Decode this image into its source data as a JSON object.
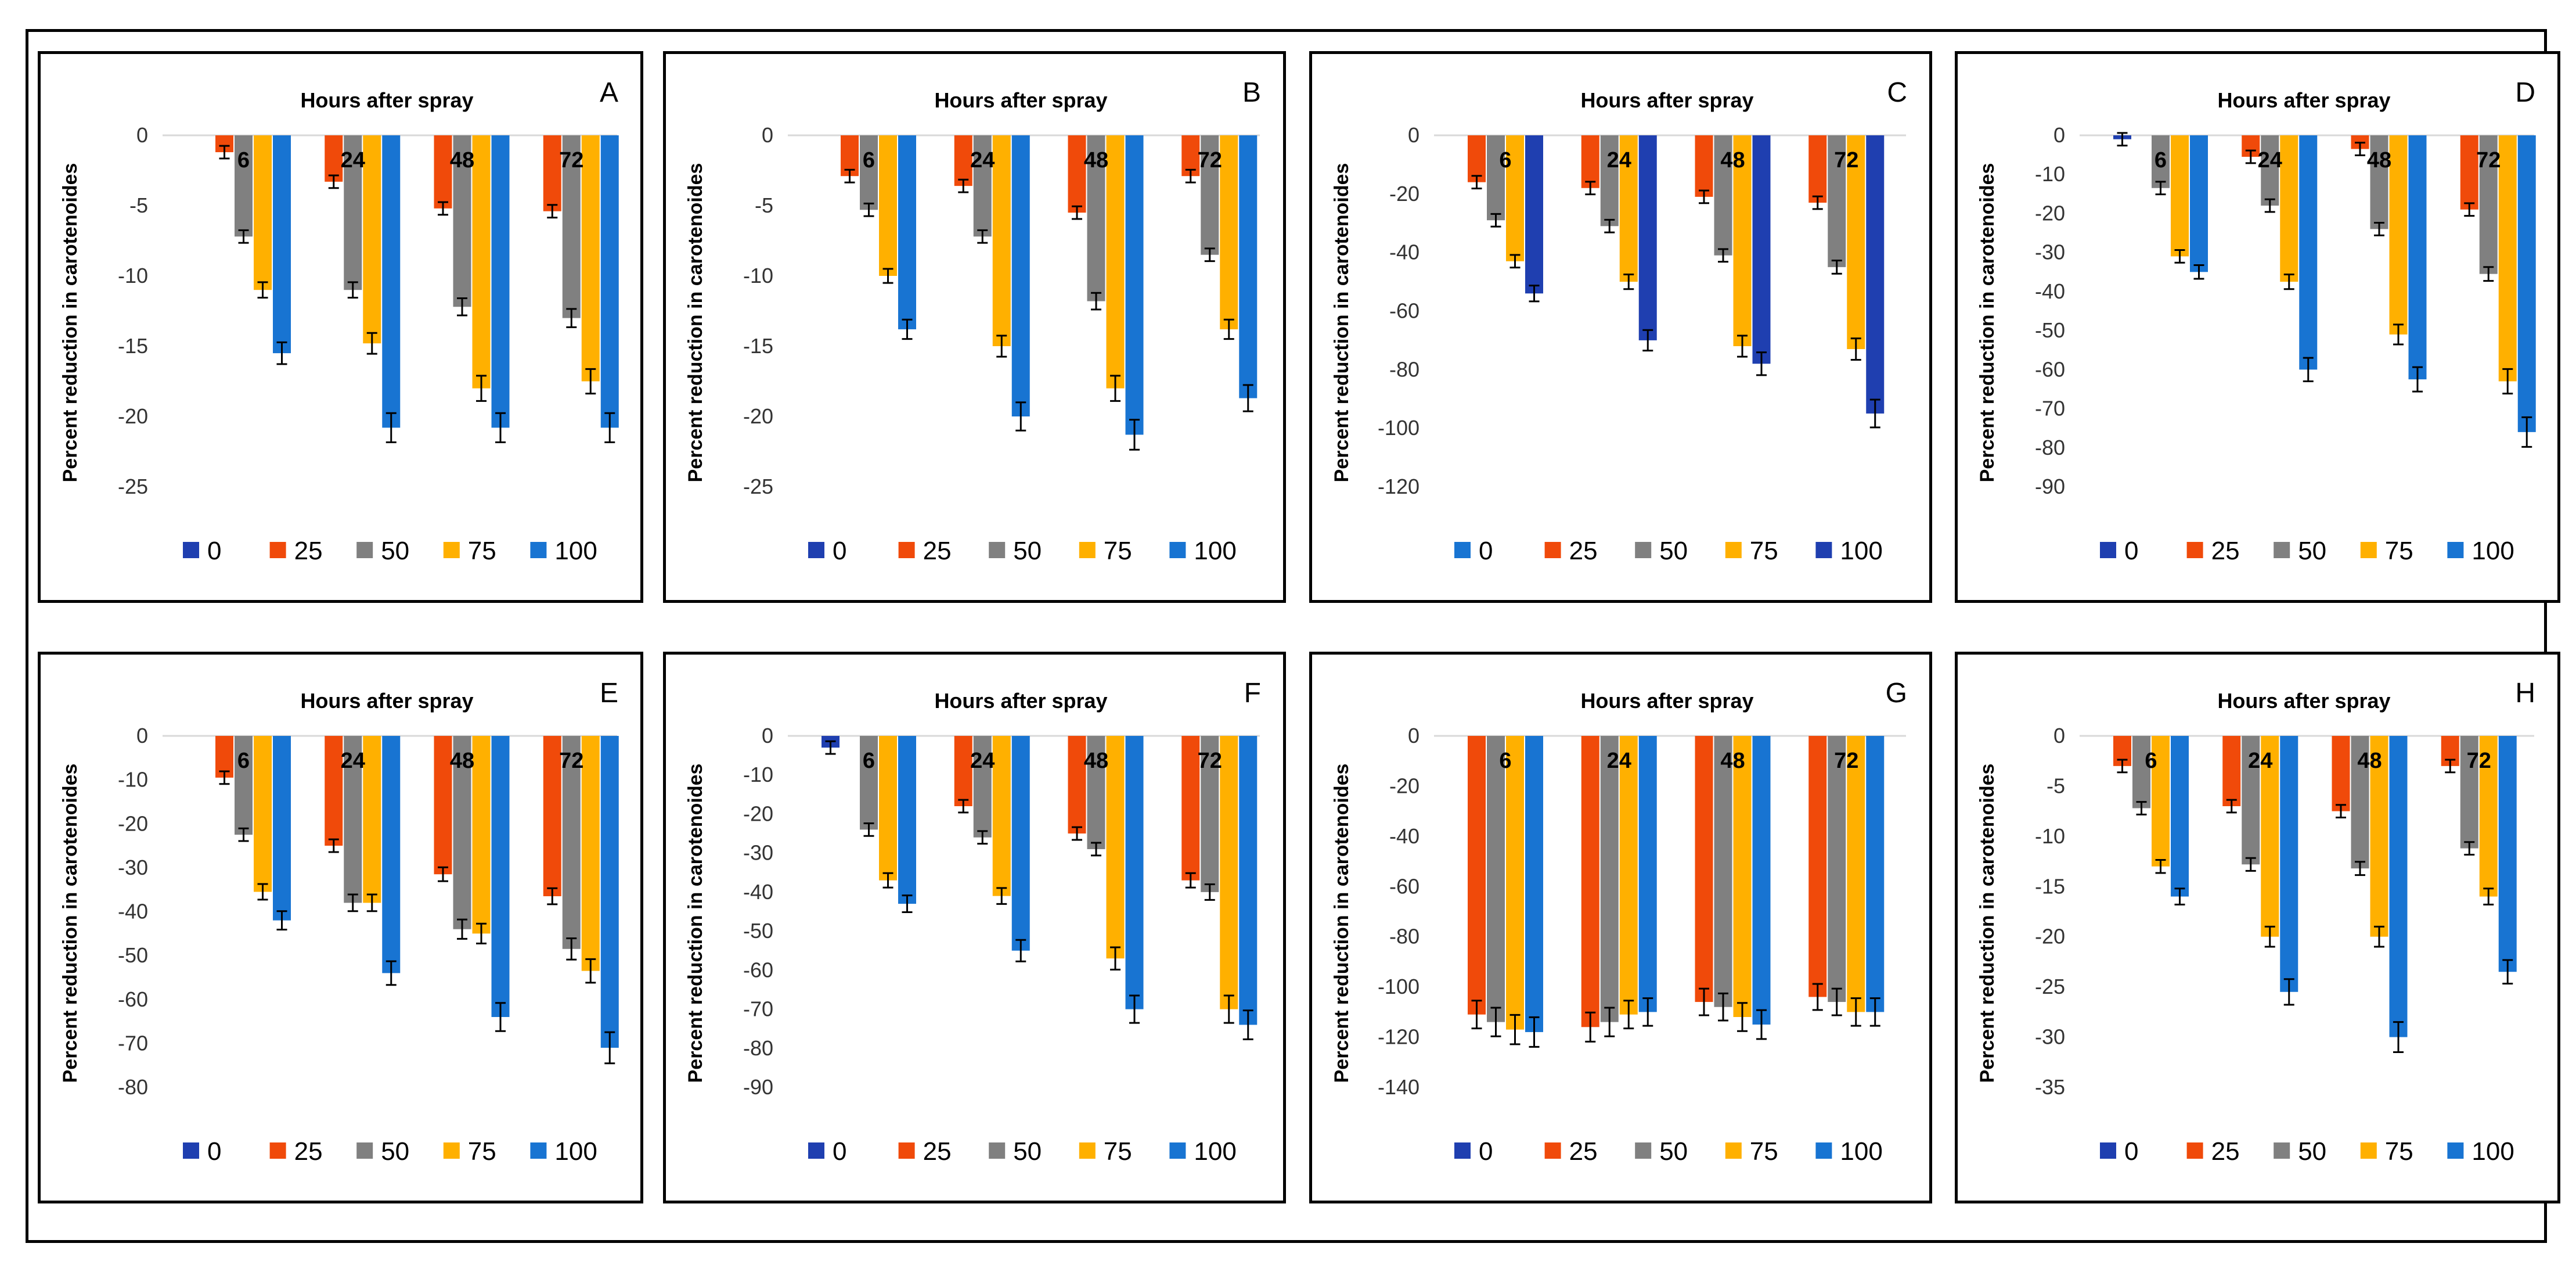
{
  "colors": {
    "c0": "#1f3fb0",
    "c25": "#f04a0a",
    "c50": "#808080",
    "c75": "#ffb000",
    "c100": "#1874d2",
    "err": "#000000"
  },
  "chart_data": [
    {
      "type": "bar",
      "letter": "A",
      "title": "Hours after spray",
      "ylabel": "Percent reduction in carotenoides",
      "ylim": [
        -25,
        0
      ],
      "yticks": [
        0,
        -5,
        -10,
        -15,
        -20,
        -25
      ],
      "categories": [
        "6",
        "24",
        "48",
        "72"
      ],
      "legend_order": [
        "0",
        "25",
        "50",
        "75",
        "100"
      ],
      "legend_colors": [
        "#1f3fb0",
        "#f04a0a",
        "#808080",
        "#ffb000",
        "#1874d2"
      ],
      "series": [
        {
          "name": "0",
          "color": "#1f3fb0",
          "values": [
            0,
            0,
            0,
            0
          ]
        },
        {
          "name": "25",
          "color": "#f04a0a",
          "values": [
            -1.2,
            -3.3,
            -5.2,
            -5.4
          ]
        },
        {
          "name": "50",
          "color": "#808080",
          "values": [
            -7.2,
            -11.0,
            -12.2,
            -13.0
          ]
        },
        {
          "name": "75",
          "color": "#ffb000",
          "values": [
            -11.0,
            -14.8,
            -18.0,
            -17.5
          ]
        },
        {
          "name": "100",
          "color": "#1874d2",
          "values": [
            -15.5,
            -20.8,
            -20.8,
            -20.8
          ]
        }
      ]
    },
    {
      "type": "bar",
      "letter": "B",
      "title": "Hours after spray",
      "ylabel": "Percent reduction in carotenoides",
      "ylim": [
        -25,
        0
      ],
      "yticks": [
        0,
        -5,
        -10,
        -15,
        -20,
        -25
      ],
      "categories": [
        "6",
        "24",
        "48",
        "72"
      ],
      "legend_order": [
        "0",
        "25",
        "50",
        "75",
        "100"
      ],
      "legend_colors": [
        "#1f3fb0",
        "#f04a0a",
        "#808080",
        "#ffb000",
        "#1874d2"
      ],
      "series": [
        {
          "name": "0",
          "color": "#1f3fb0",
          "values": [
            0,
            0,
            0,
            0
          ]
        },
        {
          "name": "25",
          "color": "#f04a0a",
          "values": [
            -2.9,
            -3.6,
            -5.5,
            -2.9
          ]
        },
        {
          "name": "50",
          "color": "#808080",
          "values": [
            -5.3,
            -7.2,
            -11.8,
            -8.5
          ]
        },
        {
          "name": "75",
          "color": "#ffb000",
          "values": [
            -10.0,
            -15.0,
            -18.0,
            -13.8
          ]
        },
        {
          "name": "100",
          "color": "#1874d2",
          "values": [
            -13.8,
            -20.0,
            -21.3,
            -18.7
          ]
        }
      ]
    },
    {
      "type": "bar",
      "letter": "C",
      "title": "Hours after spray",
      "ylabel": "Percent reduction in carotenoides",
      "ylim": [
        -120,
        0
      ],
      "yticks": [
        0,
        -20,
        -40,
        -60,
        -80,
        -100,
        -120
      ],
      "categories": [
        "6",
        "24",
        "48",
        "72"
      ],
      "legend_order": [
        "0",
        "25",
        "50",
        "75",
        "100"
      ],
      "legend_colors": [
        "#1874d2",
        "#f04a0a",
        "#808080",
        "#ffb000",
        "#1f3fb0"
      ],
      "series": [
        {
          "name": "25",
          "color": "#f04a0a",
          "values": [
            -16,
            -18,
            -21,
            -23
          ]
        },
        {
          "name": "50",
          "color": "#808080",
          "values": [
            -29,
            -31,
            -41,
            -45
          ]
        },
        {
          "name": "75",
          "color": "#ffb000",
          "values": [
            -43,
            -50,
            -72,
            -73
          ]
        },
        {
          "name": "100",
          "color": "#1f3fb0",
          "values": [
            -54,
            -70,
            -78,
            -95
          ]
        }
      ]
    },
    {
      "type": "bar",
      "letter": "D",
      "title": "Hours after spray",
      "ylabel": "Percent reduction in carotenoides",
      "ylim": [
        -90,
        0
      ],
      "yticks": [
        0,
        -10,
        -20,
        -30,
        -40,
        -50,
        -60,
        -70,
        -80,
        -90
      ],
      "categories": [
        "6",
        "24",
        "48",
        "72"
      ],
      "legend_order": [
        "0",
        "25",
        "50",
        "75",
        "100"
      ],
      "legend_colors": [
        "#1f3fb0",
        "#f04a0a",
        "#808080",
        "#ffb000",
        "#1874d2"
      ],
      "series": [
        {
          "name": "0",
          "color": "#1f3fb0",
          "values": [
            -1,
            0,
            0,
            0
          ]
        },
        {
          "name": "25",
          "color": "#f04a0a",
          "values": [
            0,
            -5.5,
            -3.5,
            -19
          ]
        },
        {
          "name": "50",
          "color": "#808080",
          "values": [
            -13.5,
            -18,
            -24,
            -35.5
          ]
        },
        {
          "name": "75",
          "color": "#ffb000",
          "values": [
            -31,
            -37.5,
            -51,
            -63
          ]
        },
        {
          "name": "100",
          "color": "#1874d2",
          "values": [
            -35,
            -60,
            -62.5,
            -76
          ]
        }
      ]
    },
    {
      "type": "bar",
      "letter": "E",
      "title": "Hours after spray",
      "ylabel": "Percent reduction in carotenoides",
      "ylim": [
        -80,
        0
      ],
      "yticks": [
        0,
        -10,
        -20,
        -30,
        -40,
        -50,
        -60,
        -70,
        -80
      ],
      "categories": [
        "6",
        "24",
        "48",
        "72"
      ],
      "legend_order": [
        "0",
        "25",
        "50",
        "75",
        "100"
      ],
      "legend_colors": [
        "#1f3fb0",
        "#f04a0a",
        "#808080",
        "#ffb000",
        "#1874d2"
      ],
      "series": [
        {
          "name": "0",
          "color": "#1f3fb0",
          "values": [
            0,
            0,
            0,
            0
          ]
        },
        {
          "name": "25",
          "color": "#f04a0a",
          "values": [
            -9.5,
            -25,
            -31.5,
            -36.5
          ]
        },
        {
          "name": "50",
          "color": "#808080",
          "values": [
            -22.5,
            -38,
            -44,
            -48.5
          ]
        },
        {
          "name": "75",
          "color": "#ffb000",
          "values": [
            -35.5,
            -38,
            -45,
            -53.5
          ]
        },
        {
          "name": "100",
          "color": "#1874d2",
          "values": [
            -42,
            -54,
            -64,
            -71
          ]
        }
      ]
    },
    {
      "type": "bar",
      "letter": "F",
      "title": "Hours after spray",
      "ylabel": "Percent reduction in carotenoides",
      "ylim": [
        -90,
        0
      ],
      "yticks": [
        0,
        -10,
        -20,
        -30,
        -40,
        -50,
        -60,
        -70,
        -80,
        -90
      ],
      "categories": [
        "6",
        "24",
        "48",
        "72"
      ],
      "legend_order": [
        "0",
        "25",
        "50",
        "75",
        "100"
      ],
      "legend_colors": [
        "#1f3fb0",
        "#f04a0a",
        "#808080",
        "#ffb000",
        "#1874d2"
      ],
      "series": [
        {
          "name": "0",
          "color": "#1f3fb0",
          "values": [
            -3,
            0,
            0,
            0
          ]
        },
        {
          "name": "25",
          "color": "#f04a0a",
          "values": [
            0,
            -18,
            -25,
            -37
          ]
        },
        {
          "name": "50",
          "color": "#808080",
          "values": [
            -24,
            -26,
            -29,
            -40
          ]
        },
        {
          "name": "75",
          "color": "#ffb000",
          "values": [
            -37,
            -41,
            -57,
            -70
          ]
        },
        {
          "name": "100",
          "color": "#1874d2",
          "values": [
            -43,
            -55,
            -70,
            -74
          ]
        }
      ]
    },
    {
      "type": "bar",
      "letter": "G",
      "title": "Hours after spray",
      "ylabel": "Percent reduction in carotenoides",
      "ylim": [
        -140,
        0
      ],
      "yticks": [
        0,
        -20,
        -40,
        -60,
        -80,
        -100,
        -120,
        -140
      ],
      "categories": [
        "6",
        "24",
        "48",
        "72"
      ],
      "legend_order": [
        "0",
        "25",
        "50",
        "75",
        "100"
      ],
      "legend_colors": [
        "#1f3fb0",
        "#f04a0a",
        "#808080",
        "#ffb000",
        "#1874d2"
      ],
      "series": [
        {
          "name": "25",
          "color": "#f04a0a",
          "values": [
            -111,
            -116,
            -106,
            -104
          ]
        },
        {
          "name": "50",
          "color": "#808080",
          "values": [
            -114,
            -114,
            -108,
            -106
          ]
        },
        {
          "name": "75",
          "color": "#ffb000",
          "values": [
            -117,
            -111,
            -112,
            -110
          ]
        },
        {
          "name": "100",
          "color": "#1874d2",
          "values": [
            -118,
            -110,
            -115,
            -110
          ]
        }
      ]
    },
    {
      "type": "bar",
      "letter": "H",
      "title": "Hours after spray",
      "ylabel": "Percent reduction in carotenoides",
      "ylim": [
        -35,
        0
      ],
      "yticks": [
        0,
        -5,
        -10,
        -15,
        -20,
        -25,
        -30,
        -35
      ],
      "categories": [
        "6",
        "24",
        "48",
        "72"
      ],
      "legend_order": [
        "0",
        "25",
        "50",
        "75",
        "100"
      ],
      "legend_colors": [
        "#1f3fb0",
        "#f04a0a",
        "#808080",
        "#ffb000",
        "#1874d2"
      ],
      "series": [
        {
          "name": "25",
          "color": "#f04a0a",
          "values": [
            -3,
            -7,
            -7.5,
            -3
          ]
        },
        {
          "name": "50",
          "color": "#808080",
          "values": [
            -7.2,
            -12.8,
            -13.2,
            -11.2
          ]
        },
        {
          "name": "75",
          "color": "#ffb000",
          "values": [
            -13,
            -20,
            -20,
            -16
          ]
        },
        {
          "name": "100",
          "color": "#1874d2",
          "values": [
            -16,
            -25.5,
            -30,
            -23.5
          ]
        }
      ]
    }
  ]
}
